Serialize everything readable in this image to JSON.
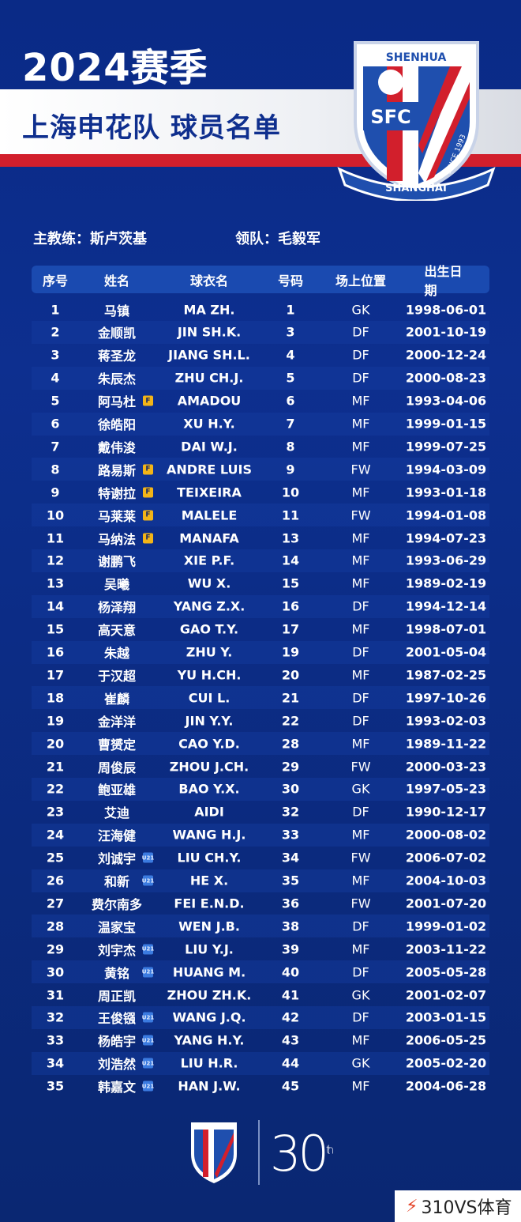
{
  "header": {
    "title": "2024赛季",
    "subtitle": "上海申花队 球员名单",
    "crest_top": "SHENHUA",
    "crest_mid": "SFC",
    "crest_since": "SINCE 1993",
    "crest_bottom": "SHANGHAI"
  },
  "staff": {
    "coach": "主教练：斯卢茨基",
    "leader": "领队：毛毅军"
  },
  "table": {
    "columns": [
      "序号",
      "姓名",
      "球衣名",
      "号码",
      "场上位置",
      "出生日期"
    ],
    "rows": [
      [
        "1",
        "马镇",
        "",
        "MA ZH.",
        "1",
        "GK",
        "1998-06-01"
      ],
      [
        "2",
        "金顺凯",
        "",
        "JIN SH.K.",
        "3",
        "DF",
        "2001-10-19"
      ],
      [
        "3",
        "蒋圣龙",
        "",
        "JIANG SH.L.",
        "4",
        "DF",
        "2000-12-24"
      ],
      [
        "4",
        "朱辰杰",
        "",
        "ZHU CH.J.",
        "5",
        "DF",
        "2000-08-23"
      ],
      [
        "5",
        "阿马杜",
        "F",
        "AMADOU",
        "6",
        "MF",
        "1993-04-06"
      ],
      [
        "6",
        "徐皓阳",
        "",
        "XU H.Y.",
        "7",
        "MF",
        "1999-01-15"
      ],
      [
        "7",
        "戴伟浚",
        "",
        "DAI W.J.",
        "8",
        "MF",
        "1999-07-25"
      ],
      [
        "8",
        "路易斯",
        "F",
        "ANDRE LUIS",
        "9",
        "FW",
        "1994-03-09"
      ],
      [
        "9",
        "特谢拉",
        "F",
        "TEIXEIRA",
        "10",
        "MF",
        "1993-01-18"
      ],
      [
        "10",
        "马莱莱",
        "F",
        "MALELE",
        "11",
        "FW",
        "1994-01-08"
      ],
      [
        "11",
        "马纳法",
        "F",
        "MANAFA",
        "13",
        "MF",
        "1994-07-23"
      ],
      [
        "12",
        "谢鹏飞",
        "",
        "XIE P.F.",
        "14",
        "MF",
        "1993-06-29"
      ],
      [
        "13",
        "吴曦",
        "",
        "WU X.",
        "15",
        "MF",
        "1989-02-19"
      ],
      [
        "14",
        "杨泽翔",
        "",
        "YANG Z.X.",
        "16",
        "DF",
        "1994-12-14"
      ],
      [
        "15",
        "高天意",
        "",
        "GAO T.Y.",
        "17",
        "MF",
        "1998-07-01"
      ],
      [
        "16",
        "朱越",
        "",
        "ZHU Y.",
        "19",
        "DF",
        "2001-05-04"
      ],
      [
        "17",
        "于汉超",
        "",
        "YU H.CH.",
        "20",
        "MF",
        "1987-02-25"
      ],
      [
        "18",
        "崔麟",
        "",
        "CUI L.",
        "21",
        "DF",
        "1997-10-26"
      ],
      [
        "19",
        "金洋洋",
        "",
        "JIN Y.Y.",
        "22",
        "DF",
        "1993-02-03"
      ],
      [
        "20",
        "曹赟定",
        "",
        "CAO Y.D.",
        "28",
        "MF",
        "1989-11-22"
      ],
      [
        "21",
        "周俊辰",
        "",
        "ZHOU J.CH.",
        "29",
        "FW",
        "2000-03-23"
      ],
      [
        "22",
        "鲍亚雄",
        "",
        "BAO Y.X.",
        "30",
        "GK",
        "1997-05-23"
      ],
      [
        "23",
        "艾迪",
        "",
        "AIDI",
        "32",
        "DF",
        "1990-12-17"
      ],
      [
        "24",
        "汪海健",
        "",
        "WANG H.J.",
        "33",
        "MF",
        "2000-08-02"
      ],
      [
        "25",
        "刘诚宇",
        "U21",
        "LIU CH.Y.",
        "34",
        "FW",
        "2006-07-02"
      ],
      [
        "26",
        "和新",
        "U21",
        "HE X.",
        "35",
        "MF",
        "2004-10-03"
      ],
      [
        "27",
        "费尔南多",
        "",
        "FEI E.N.D.",
        "36",
        "FW",
        "2001-07-20"
      ],
      [
        "28",
        "温家宝",
        "",
        "WEN J.B.",
        "38",
        "DF",
        "1999-01-02"
      ],
      [
        "29",
        "刘宇杰",
        "U21",
        "LIU Y.J.",
        "39",
        "MF",
        "2003-11-22"
      ],
      [
        "30",
        "黄铭",
        "U21",
        "HUANG M.",
        "40",
        "DF",
        "2005-05-28"
      ],
      [
        "31",
        "周正凯",
        "",
        "ZHOU ZH.K.",
        "41",
        "GK",
        "2001-02-07"
      ],
      [
        "32",
        "王俊镪",
        "U21",
        "WANG J.Q.",
        "42",
        "DF",
        "2003-01-15"
      ],
      [
        "33",
        "杨皓宇",
        "U21",
        "YANG H.Y.",
        "43",
        "MF",
        "2006-05-25"
      ],
      [
        "34",
        "刘浩然",
        "U21",
        "LIU H.R.",
        "44",
        "GK",
        "2005-02-20"
      ],
      [
        "35",
        "韩嘉文",
        "U21",
        "HAN J.W.",
        "45",
        "MF",
        "2004-06-28"
      ]
    ]
  },
  "footer": {
    "anniversary": "30",
    "anniversary_suffix": "th",
    "watermark": "310VS体育"
  },
  "colors": {
    "background": "#0b2a7a",
    "accent_red": "#d21f2c",
    "header_bar": "#1a4ab0",
    "foreign_badge": "#f2b418",
    "u21_badge": "#3b7be0"
  }
}
